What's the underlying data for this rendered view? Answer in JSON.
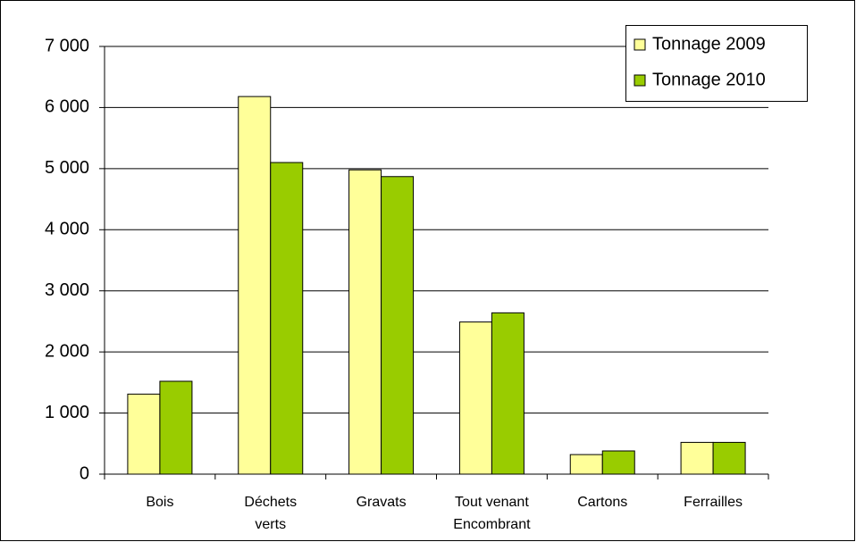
{
  "chart_data": {
    "type": "bar",
    "categories": [
      [
        "Bois"
      ],
      [
        "Déchets",
        "verts"
      ],
      [
        "Gravats"
      ],
      [
        "Tout venant",
        "Encombrant"
      ],
      [
        "Cartons"
      ],
      [
        "Ferrailles"
      ]
    ],
    "series": [
      {
        "name": "Tonnage 2009",
        "color": "#ffff99",
        "values": [
          1310,
          6180,
          4980,
          2490,
          320,
          520
        ]
      },
      {
        "name": "Tonnage 2010",
        "color": "#99cc00",
        "values": [
          1520,
          5100,
          4870,
          2640,
          380,
          520
        ]
      }
    ],
    "ylim": [
      0,
      7000
    ],
    "yticks": [
      {
        "value": 0,
        "label": "0"
      },
      {
        "value": 1000,
        "label": "1 000"
      },
      {
        "value": 2000,
        "label": "2 000"
      },
      {
        "value": 3000,
        "label": "3 000"
      },
      {
        "value": 4000,
        "label": "4 000"
      },
      {
        "value": 5000,
        "label": "5 000"
      },
      {
        "value": 6000,
        "label": "6 000"
      },
      {
        "value": 7000,
        "label": "7 000"
      }
    ],
    "grid": true,
    "legend": "top-right"
  }
}
